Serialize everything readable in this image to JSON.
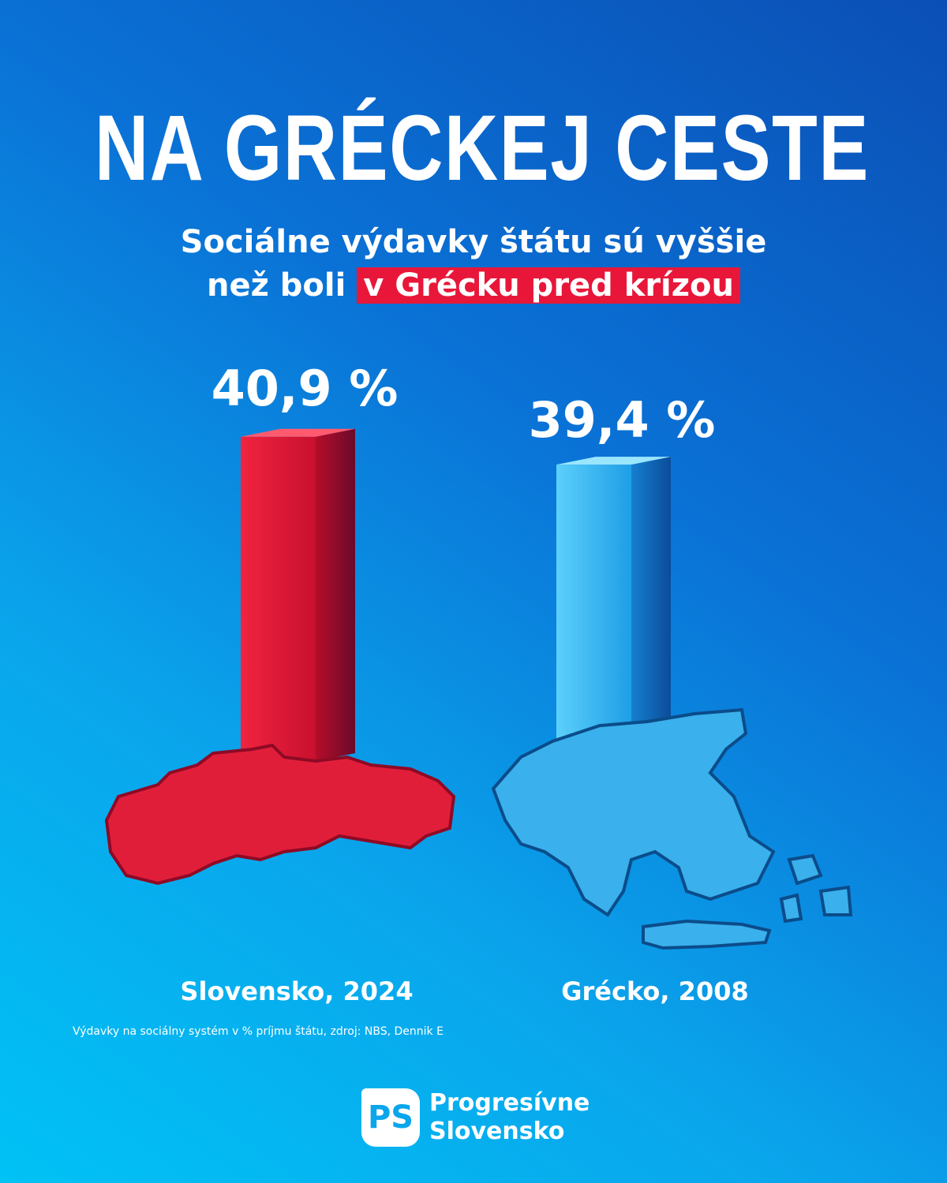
{
  "title": "NA GRÉCKEJ CESTE",
  "subtitle_line1": "Sociálne výdavky štátu sú vyššie",
  "subtitle_line2_prefix": "než boli",
  "subtitle_line2_highlight": "v Grécku pred krízou",
  "colors": {
    "highlight": "#e8173a",
    "slovakia": "#e8213b",
    "greece": "#3ab8f0"
  },
  "chart_data": {
    "type": "bar",
    "categories": [
      "Slovensko, 2024",
      "Grécko, 2008"
    ],
    "values": [
      40.9,
      39.4
    ],
    "value_labels": [
      "40,9 %",
      "39,4 %"
    ],
    "unit": "%",
    "title": "NA GRÉCKEJ CESTE",
    "note": "Výdavky na sociálny systém v % príjmu štátu, zdroj: NBS, Dennik E"
  },
  "logo": {
    "mark": "PS",
    "line1": "Progresívne",
    "line2": "Slovensko"
  }
}
